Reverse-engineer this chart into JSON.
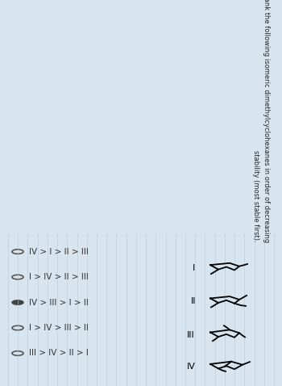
{
  "bg_color": "#d8e4ee",
  "line_color": "#b8ccd8",
  "title_line1": "Rank the following isomeric dimethylcyclohexanes in order of decreasing",
  "title_line2": "stability (most stable first).",
  "options": [
    "IV > I > II > III",
    "I > IV > II > III",
    "IV > III > I > II",
    "I > IV > III > II",
    "III > IV > II > I"
  ],
  "correct_index": 2,
  "mol_labels": [
    "I",
    "II",
    "III",
    "IV"
  ],
  "text_color": "#222222",
  "option_color": "#333333",
  "circle_color": "#555555",
  "lw": 1.3
}
